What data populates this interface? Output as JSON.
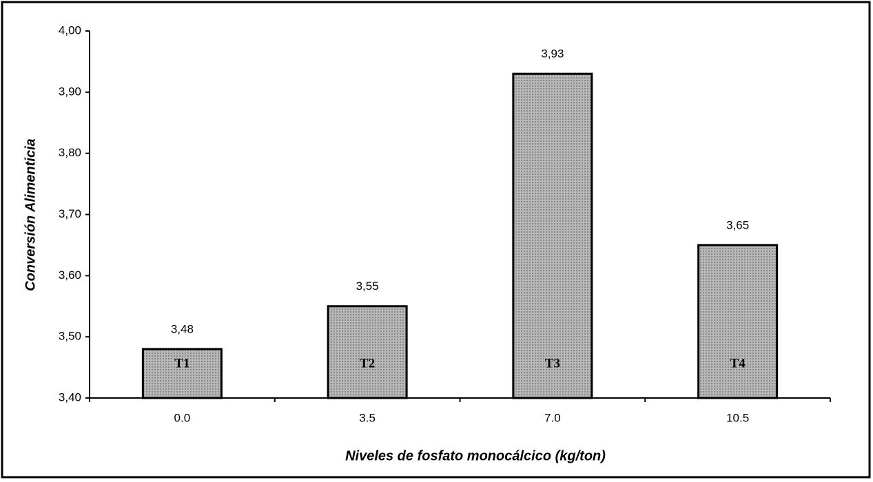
{
  "chart_data": {
    "type": "bar",
    "x_label": "Niveles de fosfato monocálcico (kg/ton)",
    "y_label": "Conversión Alimenticia",
    "categories": [
      "0.0",
      "3.5",
      "7.0",
      "10.5"
    ],
    "values": [
      3.48,
      3.55,
      3.93,
      3.65
    ],
    "value_labels": [
      "3,48",
      "3,55",
      "3,93",
      "3,65"
    ],
    "annotations": [
      "T1",
      "T2",
      "T3",
      "T4"
    ],
    "color": "#b8b8b8",
    "ylim": [
      3.4,
      4.0
    ],
    "yticks": [
      {
        "value": 3.4,
        "label": "3,40"
      },
      {
        "value": 3.5,
        "label": "3,50"
      },
      {
        "value": 3.6,
        "label": "3,60"
      },
      {
        "value": 3.7,
        "label": "3,70"
      },
      {
        "value": 3.8,
        "label": "3,80"
      },
      {
        "value": 3.9,
        "label": "3,90"
      },
      {
        "value": 4.0,
        "label": "4,00"
      }
    ],
    "grid": false
  }
}
